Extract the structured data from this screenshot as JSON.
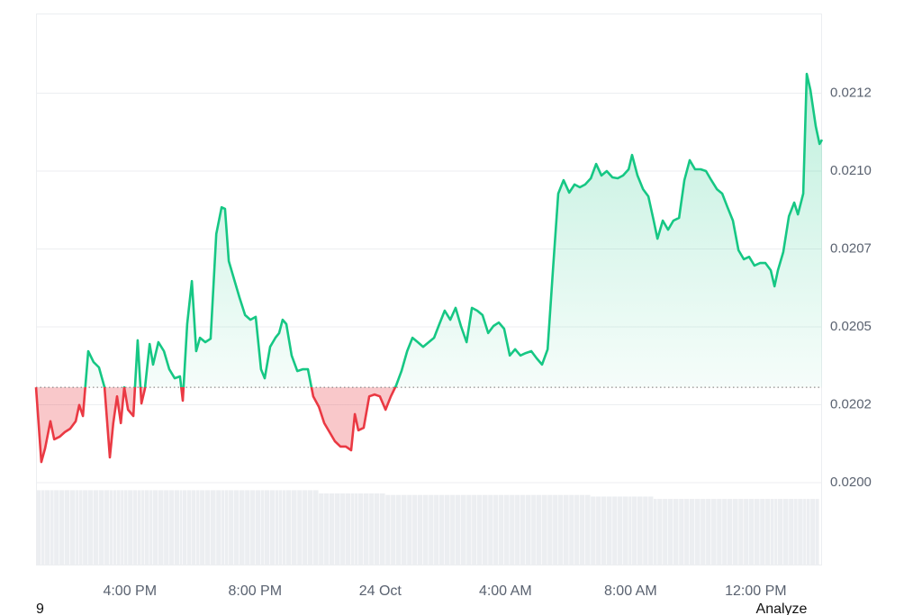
{
  "chart_data": {
    "type": "line",
    "x": [
      13.0,
      13.17,
      13.29,
      13.46,
      13.58,
      13.75,
      13.92,
      14.09,
      14.27,
      14.38,
      14.5,
      14.67,
      14.84,
      15.01,
      15.19,
      15.36,
      15.47,
      15.59,
      15.71,
      15.82,
      15.94,
      16.11,
      16.25,
      16.37,
      16.48,
      16.63,
      16.74,
      16.91,
      17.09,
      17.26,
      17.43,
      17.6,
      17.69,
      17.83,
      17.98,
      18.12,
      18.24,
      18.41,
      18.58,
      18.76,
      18.93,
      19.04,
      19.16,
      19.33,
      19.5,
      19.68,
      19.85,
      20.02,
      20.19,
      20.31,
      20.48,
      20.65,
      20.77,
      20.88,
      21.0,
      21.17,
      21.35,
      21.52,
      21.69,
      21.86,
      22.04,
      22.21,
      22.38,
      22.55,
      22.73,
      22.9,
      23.07,
      23.19,
      23.3,
      23.47,
      23.65,
      23.82,
      23.99,
      24.17,
      24.34,
      24.51,
      24.68,
      24.86,
      25.03,
      25.2,
      25.37,
      25.55,
      25.72,
      25.89,
      26.06,
      26.24,
      26.41,
      26.58,
      26.76,
      26.93,
      27.1,
      27.27,
      27.45,
      27.62,
      27.79,
      27.96,
      28.14,
      28.31,
      28.48,
      28.65,
      28.83,
      29.0,
      29.17,
      29.35,
      29.52,
      29.69,
      29.86,
      30.04,
      30.21,
      30.38,
      30.55,
      30.73,
      30.9,
      31.07,
      31.24,
      31.42,
      31.59,
      31.76,
      31.94,
      32.05,
      32.22,
      32.4,
      32.57,
      32.74,
      32.86,
      33.03,
      33.2,
      33.37,
      33.55,
      33.72,
      33.89,
      34.06,
      34.24,
      34.41,
      34.58,
      34.76,
      34.93,
      35.1,
      35.27,
      35.45,
      35.62,
      35.79,
      35.96,
      36.14,
      36.31,
      36.48,
      36.6,
      36.71,
      36.88,
      37.06,
      37.23,
      37.35,
      37.52,
      37.63,
      37.75,
      37.92,
      38.04,
      38.12
    ],
    "values": [
      0.020306,
      0.020066,
      0.02011,
      0.020197,
      0.020139,
      0.020147,
      0.020162,
      0.020173,
      0.020197,
      0.020249,
      0.020214,
      0.020422,
      0.020387,
      0.02037,
      0.020306,
      0.020081,
      0.020191,
      0.020277,
      0.020191,
      0.020306,
      0.020234,
      0.020214,
      0.020457,
      0.020254,
      0.020301,
      0.020445,
      0.020379,
      0.020451,
      0.020422,
      0.020364,
      0.020335,
      0.020341,
      0.020263,
      0.020509,
      0.020647,
      0.020422,
      0.020465,
      0.020451,
      0.020462,
      0.020798,
      0.020884,
      0.020879,
      0.020711,
      0.020653,
      0.020595,
      0.020538,
      0.020523,
      0.020532,
      0.020364,
      0.020335,
      0.020436,
      0.020465,
      0.02048,
      0.020523,
      0.020509,
      0.020408,
      0.020358,
      0.020364,
      0.020364,
      0.020277,
      0.020243,
      0.020191,
      0.020162,
      0.020133,
      0.020116,
      0.020116,
      0.020104,
      0.02022,
      0.020168,
      0.020176,
      0.020277,
      0.020283,
      0.020277,
      0.020234,
      0.020277,
      0.020312,
      0.020358,
      0.020422,
      0.020465,
      0.020451,
      0.020436,
      0.020451,
      0.020465,
      0.020509,
      0.020552,
      0.020523,
      0.020561,
      0.020503,
      0.020451,
      0.020561,
      0.020552,
      0.020538,
      0.02048,
      0.020503,
      0.020514,
      0.020494,
      0.020408,
      0.020428,
      0.020408,
      0.020416,
      0.020422,
      0.020399,
      0.020379,
      0.020428,
      0.020682,
      0.020928,
      0.020971,
      0.020931,
      0.020957,
      0.020948,
      0.020957,
      0.020977,
      0.021023,
      0.020986,
      0.021,
      0.02098,
      0.020977,
      0.020986,
      0.021006,
      0.021052,
      0.020986,
      0.020942,
      0.020919,
      0.020841,
      0.020783,
      0.020841,
      0.020812,
      0.020841,
      0.02085,
      0.020971,
      0.021035,
      0.021006,
      0.021006,
      0.021,
      0.020971,
      0.020942,
      0.020928,
      0.020884,
      0.020841,
      0.020746,
      0.020717,
      0.020725,
      0.020697,
      0.020705,
      0.020705,
      0.020682,
      0.02063,
      0.020682,
      0.02074,
      0.020855,
      0.020899,
      0.020861,
      0.020928,
      0.021312,
      0.02126,
      0.021144,
      0.021087,
      0.021101
    ],
    "baseline": 0.020306,
    "color_up": "#16c784",
    "color_down": "#ea3943",
    "xlim": [
      13,
      38.12
    ],
    "xticks": [
      {
        "value": 16,
        "label": "4:00 PM"
      },
      {
        "value": 20,
        "label": "8:00 PM"
      },
      {
        "value": 24,
        "label": "24 Oct"
      },
      {
        "value": 28,
        "label": "4:00 AM"
      },
      {
        "value": 32,
        "label": "8:00 AM"
      },
      {
        "value": 36,
        "label": "12:00 PM"
      }
    ],
    "ylim": [
      0.019734,
      0.021506
    ],
    "yticks": [
      {
        "value": 0.02,
        "label": "0.0200"
      },
      {
        "value": 0.02025,
        "label": "0.0202"
      },
      {
        "value": 0.0205,
        "label": "0.0205"
      },
      {
        "value": 0.02075,
        "label": "0.0207"
      },
      {
        "value": 0.021,
        "label": "0.0210"
      },
      {
        "value": 0.02125,
        "label": "0.0212"
      }
    ],
    "grid": true,
    "volume": {
      "axis": "y2",
      "color": "#eceef1",
      "values": [
        95,
        95,
        95,
        95,
        95,
        95,
        95,
        95,
        95,
        95,
        95,
        95,
        95,
        95,
        95,
        95,
        95,
        95,
        95,
        95,
        95,
        95,
        95,
        95,
        95,
        95,
        95,
        95,
        95,
        95,
        95,
        95,
        95,
        95,
        95,
        95,
        95,
        95,
        95,
        95,
        95,
        95,
        95,
        95,
        95,
        95,
        95,
        95,
        95,
        95,
        95,
        95,
        95,
        95,
        95,
        95,
        95,
        95,
        95,
        95,
        91,
        91,
        91,
        91,
        91,
        91,
        91,
        91,
        91,
        91,
        91,
        91,
        91,
        89,
        89,
        89,
        89,
        89,
        89,
        89,
        89,
        89,
        89,
        89,
        89,
        89,
        89,
        89,
        89,
        89,
        89,
        89,
        89,
        89,
        89,
        89,
        89,
        89,
        89,
        89,
        89,
        89,
        89,
        89,
        89,
        89,
        89,
        89,
        89,
        89,
        89,
        87,
        87,
        87,
        87,
        87,
        87,
        87,
        87,
        87,
        87,
        87,
        87,
        84,
        84,
        84,
        84,
        84,
        84,
        84,
        84,
        84,
        84,
        84,
        84,
        84,
        84,
        84,
        84,
        84,
        84,
        84,
        84,
        84,
        84,
        84,
        84,
        84,
        84,
        84,
        84,
        84,
        84,
        84,
        84,
        84
      ]
    },
    "y2lim": [
      0,
      100
    ]
  },
  "footer_left": "9",
  "footer_right": "Analyze"
}
